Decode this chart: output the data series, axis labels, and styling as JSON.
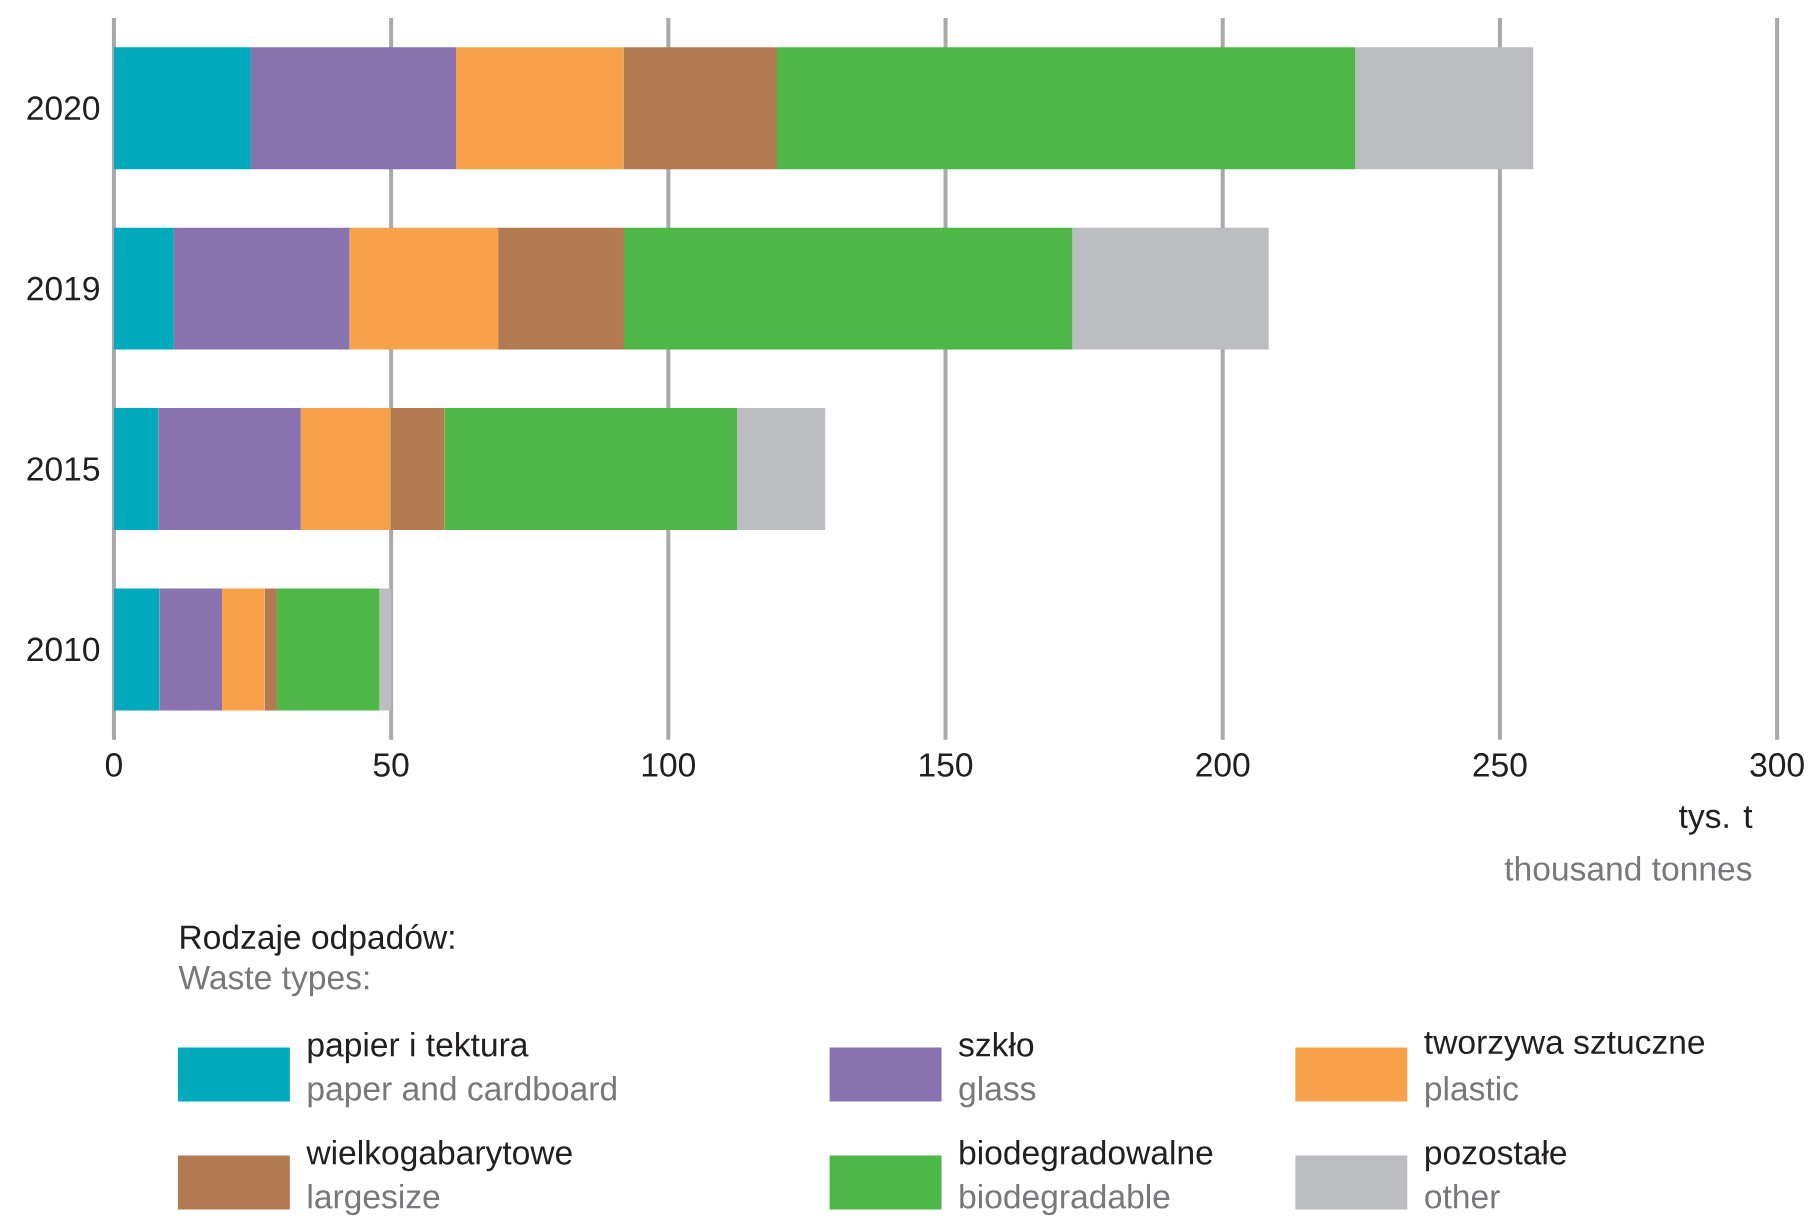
{
  "chart_data": {
    "type": "bar",
    "orientation": "horizontal",
    "stacked": true,
    "categories": [
      "2020",
      "2019",
      "2015",
      "2010"
    ],
    "series": [
      {
        "name": "papier i tektura",
        "color": "#00a9bb",
        "values": [
          24.7,
          10.8,
          8.0,
          8.2
        ]
      },
      {
        "name": "szkło",
        "color": "#8872b0",
        "values": [
          37.0,
          31.7,
          25.7,
          11.3
        ]
      },
      {
        "name": "tworzywa sztuczne",
        "color": "#f7a24b",
        "values": [
          30.2,
          26.8,
          16.2,
          7.7
        ]
      },
      {
        "name": "wielkogabarytowe",
        "color": "#b27a51",
        "values": [
          27.7,
          22.7,
          9.7,
          2.2
        ]
      },
      {
        "name": "biodegradowalne",
        "color": "#4db848",
        "values": [
          104.3,
          80.9,
          52.8,
          18.5
        ]
      },
      {
        "name": "pozostałe",
        "color": "#bcbdc0",
        "values": [
          32.1,
          35.4,
          15.9,
          2.1
        ]
      }
    ],
    "xlim": [
      0,
      300
    ],
    "xticks": [
      0,
      50,
      100,
      150,
      200,
      250,
      300
    ],
    "xlabel": "tys. t",
    "legend_title": "Rodzaje odpadów:",
    "annotations": [
      "thousand tonnes",
      "Waste types:",
      "paper and cardboard",
      "glass",
      "plastic",
      "largesize",
      "biodegradable",
      "other"
    ],
    "grid": "x",
    "legend": "bottom"
  }
}
